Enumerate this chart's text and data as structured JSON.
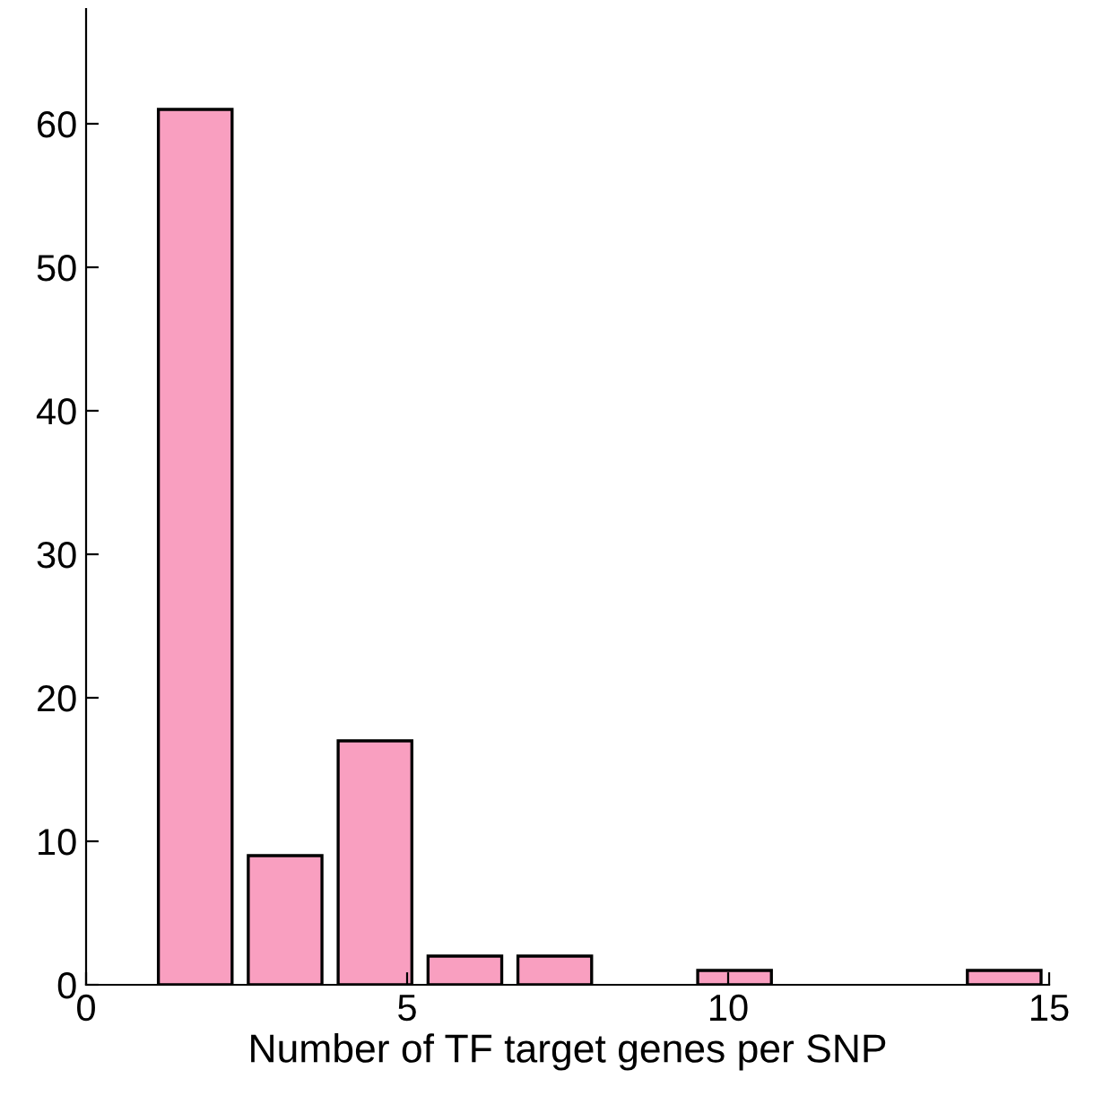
{
  "chart_data": {
    "type": "histogram",
    "xlabel": "Number of TF target genes per SNP",
    "bins": [
      1,
      2.4,
      3.8,
      5.2,
      6.6,
      8,
      9.4,
      10.8,
      12.2,
      13.6,
      15
    ],
    "values": [
      61,
      9,
      17,
      2,
      2,
      0,
      1,
      0,
      0,
      1
    ],
    "color": "#f99fc0",
    "xlim": [
      0,
      15
    ],
    "xticks": [
      0,
      5,
      10,
      15
    ],
    "ylim": [
      0,
      68
    ],
    "yticks": [
      0,
      10,
      20,
      30,
      40,
      50,
      60
    ],
    "grid": false
  }
}
